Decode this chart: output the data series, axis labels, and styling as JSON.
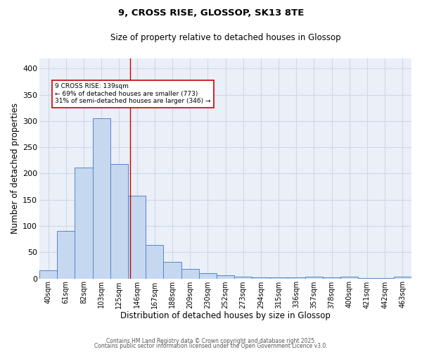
{
  "title_line1": "9, CROSS RISE, GLOSSOP, SK13 8TE",
  "title_line2": "Size of property relative to detached houses in Glossop",
  "xlabel": "Distribution of detached houses by size in Glossop",
  "ylabel": "Number of detached properties",
  "categories": [
    "40sqm",
    "61sqm",
    "82sqm",
    "103sqm",
    "125sqm",
    "146sqm",
    "167sqm",
    "188sqm",
    "209sqm",
    "230sqm",
    "252sqm",
    "273sqm",
    "294sqm",
    "315sqm",
    "336sqm",
    "357sqm",
    "378sqm",
    "400sqm",
    "421sqm",
    "442sqm",
    "463sqm"
  ],
  "values": [
    15,
    90,
    212,
    305,
    218,
    158,
    64,
    32,
    18,
    10,
    6,
    3,
    2,
    2,
    2,
    4,
    2,
    3,
    1,
    1,
    3
  ],
  "bar_color": "#c5d8f0",
  "bar_edge_color": "#5585c5",
  "vline_x_index": 4.62,
  "vline_color": "#cc0000",
  "annotation_line1": "9 CROSS RISE: 139sqm",
  "annotation_line2": "← 69% of detached houses are smaller (773)",
  "annotation_line3": "31% of semi-detached houses are larger (346) →",
  "annotation_box_color": "white",
  "annotation_box_edge_color": "#cc0000",
  "ylim": [
    0,
    420
  ],
  "yticks": [
    0,
    50,
    100,
    150,
    200,
    250,
    300,
    350,
    400
  ],
  "bg_color": "#eaeff8",
  "grid_color": "#d0d8e8",
  "footer_line1": "Contains HM Land Registry data © Crown copyright and database right 2025.",
  "footer_line2": "Contains public sector information licensed under the Open Government Licence v3.0."
}
